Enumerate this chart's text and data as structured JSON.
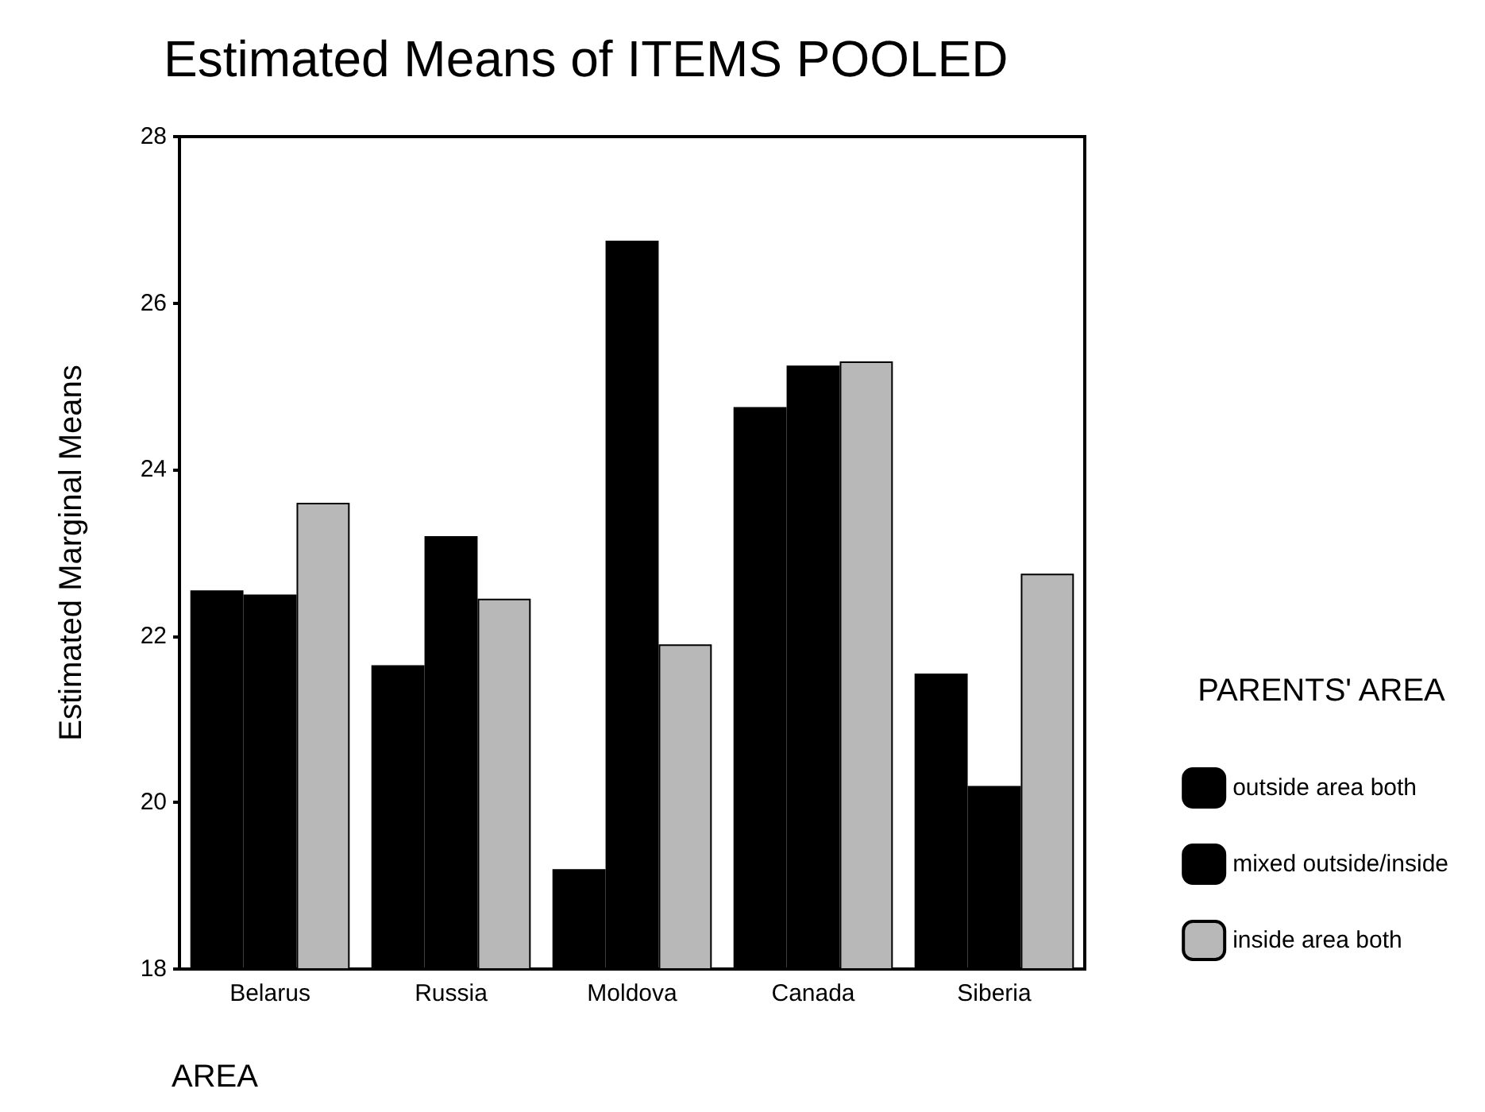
{
  "chart_data": {
    "type": "bar",
    "title": "Estimated Means of ITEMS POOLED",
    "xlabel": "AREA",
    "ylabel": "Estimated Marginal Means",
    "legend_title": "PARENTS' AREA",
    "categories": [
      "Belarus",
      "Russia",
      "Moldova",
      "Canada",
      "Siberia"
    ],
    "series": [
      {
        "name": "outside area both",
        "color": "#000000",
        "values": [
          22.55,
          21.65,
          19.2,
          24.75,
          21.55
        ]
      },
      {
        "name": "mixed outside/inside",
        "color": "#000000",
        "values": [
          22.5,
          23.2,
          26.75,
          25.25,
          20.2
        ]
      },
      {
        "name": "inside area both",
        "color": "#b8b8b8",
        "values": [
          23.6,
          22.45,
          21.9,
          25.3,
          22.75
        ]
      }
    ],
    "ylim": [
      18,
      28
    ],
    "yticks": [
      18,
      20,
      22,
      24,
      26,
      28
    ],
    "grid": false,
    "legend": "right"
  }
}
